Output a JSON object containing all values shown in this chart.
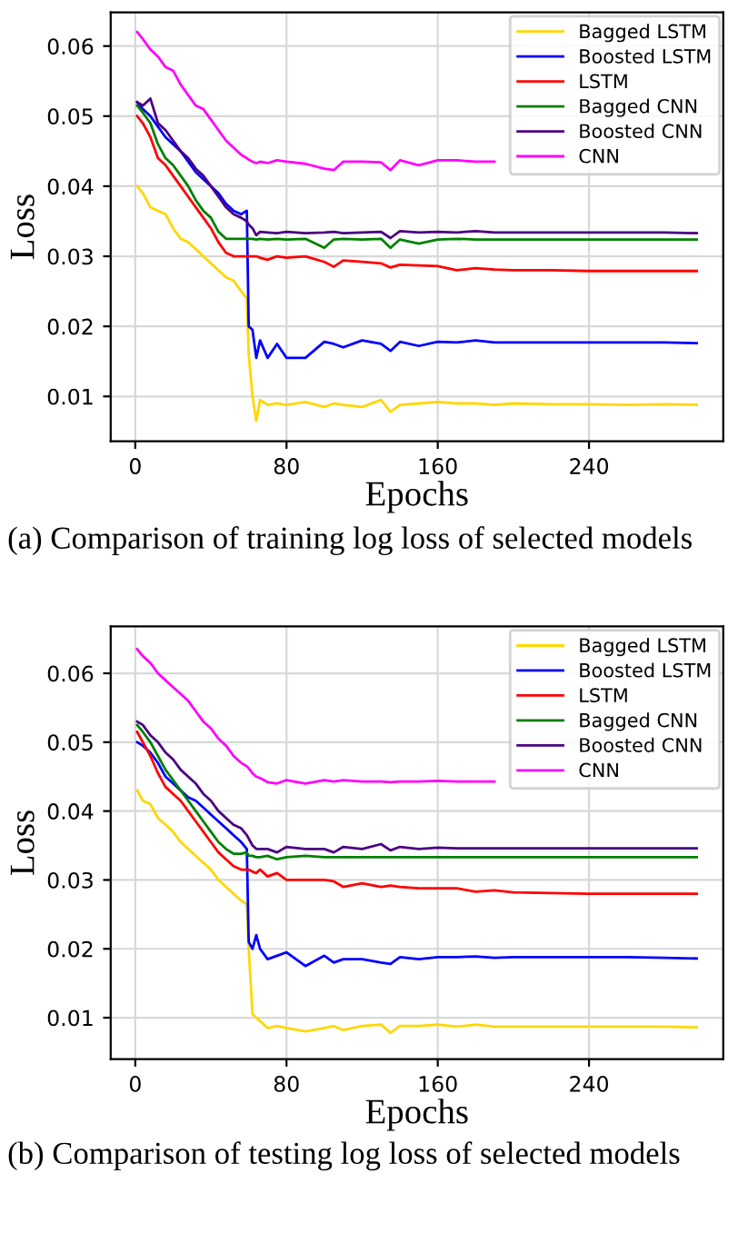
{
  "chart_data": [
    {
      "type": "line",
      "xlabel": "Epochs",
      "ylabel": "Loss",
      "xlim": [
        -13,
        311
      ],
      "ylim": [
        0.0036,
        0.0648
      ],
      "xticks": [
        0,
        80,
        160,
        240
      ],
      "yticks": [
        0.01,
        0.02,
        0.03,
        0.04,
        0.05,
        0.06
      ],
      "grid": true,
      "legend": "top right",
      "annotations": [
        "(a) Comparison of training log loss of selected models"
      ],
      "x": [
        1,
        4,
        8,
        12,
        16,
        20,
        24,
        28,
        32,
        36,
        40,
        44,
        48,
        52,
        56,
        59,
        60,
        62,
        64,
        66,
        70,
        75,
        80,
        90,
        100,
        105,
        110,
        120,
        130,
        135,
        140,
        150,
        160,
        170,
        180,
        190,
        200,
        220,
        240,
        260,
        280,
        297
      ],
      "series": [
        {
          "name": "Bagged LSTM",
          "color": "#ffd700",
          "values": [
            0.04,
            0.039,
            0.037,
            0.0365,
            0.036,
            0.034,
            0.0325,
            0.032,
            0.031,
            0.03,
            0.029,
            0.028,
            0.027,
            0.0265,
            0.025,
            0.024,
            0.016,
            0.01,
            0.0065,
            0.0095,
            0.0088,
            0.009,
            0.0088,
            0.0092,
            0.0085,
            0.009,
            0.0088,
            0.0085,
            0.0095,
            0.0078,
            0.0088,
            0.009,
            0.0092,
            0.009,
            0.009,
            0.0088,
            0.009,
            0.0089,
            0.0089,
            0.0088,
            0.0089,
            0.0088
          ]
        },
        {
          "name": "Boosted LSTM",
          "color": "#0000ff",
          "values": [
            0.052,
            0.051,
            0.05,
            0.0485,
            0.047,
            0.046,
            0.045,
            0.0435,
            0.042,
            0.041,
            0.04,
            0.039,
            0.0375,
            0.0365,
            0.036,
            0.0365,
            0.02,
            0.0195,
            0.0155,
            0.018,
            0.0155,
            0.0175,
            0.0155,
            0.0155,
            0.0178,
            0.0175,
            0.017,
            0.018,
            0.0175,
            0.0165,
            0.0178,
            0.0172,
            0.0178,
            0.0177,
            0.018,
            0.0177,
            0.0177,
            0.0177,
            0.0177,
            0.0177,
            0.0177,
            0.0176
          ]
        },
        {
          "name": "LSTM",
          "color": "#ff0000",
          "values": [
            0.05,
            0.049,
            0.047,
            0.044,
            0.043,
            0.0415,
            0.04,
            0.0385,
            0.037,
            0.0355,
            0.034,
            0.032,
            0.0305,
            0.03,
            0.03,
            0.03,
            0.03,
            0.03,
            0.03,
            0.0298,
            0.0295,
            0.03,
            0.0298,
            0.03,
            0.0292,
            0.0285,
            0.0294,
            0.0292,
            0.029,
            0.0284,
            0.0288,
            0.0287,
            0.0286,
            0.028,
            0.0283,
            0.0281,
            0.028,
            0.028,
            0.0279,
            0.0279,
            0.0279,
            0.0279
          ]
        },
        {
          "name": "Bagged CNN",
          "color": "#008000",
          "values": [
            0.0515,
            0.0505,
            0.049,
            0.046,
            0.044,
            0.043,
            0.0415,
            0.04,
            0.038,
            0.0365,
            0.0355,
            0.0335,
            0.0325,
            0.0325,
            0.0325,
            0.0325,
            0.0325,
            0.0325,
            0.0324,
            0.0325,
            0.0324,
            0.0325,
            0.0324,
            0.0325,
            0.0312,
            0.0324,
            0.0325,
            0.0324,
            0.0325,
            0.0312,
            0.0324,
            0.0318,
            0.0324,
            0.0325,
            0.0324,
            0.0324,
            0.0324,
            0.0324,
            0.0324,
            0.0324,
            0.0324,
            0.0324
          ]
        },
        {
          "name": "Boosted CNN",
          "color": "#4b0082",
          "values": [
            0.052,
            0.0515,
            0.0525,
            0.049,
            0.048,
            0.0465,
            0.045,
            0.044,
            0.0425,
            0.0415,
            0.04,
            0.0385,
            0.037,
            0.036,
            0.0355,
            0.035,
            0.0345,
            0.034,
            0.033,
            0.0335,
            0.0334,
            0.0333,
            0.0335,
            0.0333,
            0.0334,
            0.0335,
            0.0333,
            0.0334,
            0.0335,
            0.0326,
            0.0336,
            0.0334,
            0.0335,
            0.0334,
            0.0336,
            0.0334,
            0.0334,
            0.0334,
            0.0334,
            0.0334,
            0.0334,
            0.0333
          ]
        },
        {
          "name": "CNN",
          "color": "#ff00ff",
          "values": [
            0.062,
            0.061,
            0.0595,
            0.0585,
            0.057,
            0.0565,
            0.0545,
            0.053,
            0.0515,
            0.051,
            0.0495,
            0.048,
            0.0465,
            0.0455,
            0.0445,
            0.044,
            0.0438,
            0.0435,
            0.0433,
            0.0435,
            0.0433,
            0.0437,
            0.0435,
            0.0432,
            0.0425,
            0.0423,
            0.0435,
            0.0435,
            0.0434,
            0.0423,
            0.0437,
            0.043,
            0.0437,
            0.0437,
            0.0435,
            0.0435,
            null,
            null,
            null,
            null,
            null,
            null
          ]
        }
      ]
    },
    {
      "type": "line",
      "xlabel": "Epochs",
      "ylabel": "Loss",
      "xlim": [
        -13,
        311
      ],
      "ylim": [
        0.004,
        0.0668
      ],
      "xticks": [
        0,
        80,
        160,
        240
      ],
      "yticks": [
        0.01,
        0.02,
        0.03,
        0.04,
        0.05,
        0.06
      ],
      "grid": true,
      "legend": "top right",
      "annotations": [
        "(b) Comparison of testing log loss of selected models"
      ],
      "x": [
        1,
        4,
        8,
        12,
        16,
        20,
        24,
        28,
        32,
        36,
        40,
        44,
        48,
        52,
        56,
        59,
        60,
        62,
        64,
        66,
        70,
        75,
        80,
        90,
        100,
        105,
        110,
        120,
        130,
        135,
        140,
        150,
        160,
        170,
        180,
        190,
        200,
        220,
        240,
        260,
        280,
        297
      ],
      "series": [
        {
          "name": "Bagged LSTM",
          "color": "#ffd700",
          "values": [
            0.043,
            0.0415,
            0.041,
            0.039,
            0.038,
            0.037,
            0.0355,
            0.0345,
            0.0335,
            0.0325,
            0.0315,
            0.03,
            0.029,
            0.028,
            0.027,
            0.0265,
            0.02,
            0.0105,
            0.01,
            0.0095,
            0.0085,
            0.0088,
            0.0085,
            0.008,
            0.0085,
            0.0088,
            0.0082,
            0.0088,
            0.009,
            0.0078,
            0.0088,
            0.0088,
            0.009,
            0.0087,
            0.009,
            0.0087,
            0.0087,
            0.0087,
            0.0087,
            0.0087,
            0.0087,
            0.0086
          ]
        },
        {
          "name": "Boosted LSTM",
          "color": "#0000ff",
          "values": [
            0.05,
            0.0495,
            0.0485,
            0.047,
            0.045,
            0.044,
            0.043,
            0.042,
            0.0415,
            0.0405,
            0.0395,
            0.0385,
            0.0375,
            0.0365,
            0.0355,
            0.0345,
            0.021,
            0.02,
            0.022,
            0.02,
            0.0185,
            0.019,
            0.0195,
            0.0175,
            0.019,
            0.018,
            0.0185,
            0.0185,
            0.018,
            0.0178,
            0.0188,
            0.0185,
            0.0188,
            0.0188,
            0.0189,
            0.0187,
            0.0188,
            0.0188,
            0.0188,
            0.0188,
            0.0187,
            0.0186
          ]
        },
        {
          "name": "LSTM",
          "color": "#ff0000",
          "values": [
            0.0515,
            0.05,
            0.048,
            0.0455,
            0.0435,
            0.0425,
            0.0415,
            0.04,
            0.0385,
            0.037,
            0.0355,
            0.034,
            0.033,
            0.032,
            0.0315,
            0.0315,
            0.0315,
            0.0312,
            0.031,
            0.0315,
            0.0305,
            0.031,
            0.03,
            0.03,
            0.03,
            0.0298,
            0.029,
            0.0295,
            0.029,
            0.0292,
            0.029,
            0.0288,
            0.0288,
            0.0288,
            0.0283,
            0.0285,
            0.0282,
            0.0281,
            0.028,
            0.028,
            0.028,
            0.028
          ]
        },
        {
          "name": "Bagged CNN",
          "color": "#008000",
          "values": [
            0.0525,
            0.0515,
            0.05,
            0.048,
            0.046,
            0.0445,
            0.043,
            0.0415,
            0.04,
            0.0385,
            0.037,
            0.0355,
            0.0345,
            0.0338,
            0.0338,
            0.034,
            0.0335,
            0.0335,
            0.0333,
            0.0333,
            0.0335,
            0.033,
            0.0333,
            0.0335,
            0.0333,
            0.0333,
            0.0333,
            0.0333,
            0.0333,
            0.0333,
            0.0333,
            0.0333,
            0.0333,
            0.0333,
            0.0333,
            0.0333,
            0.0333,
            0.0333,
            0.0333,
            0.0333,
            0.0333,
            0.0333
          ]
        },
        {
          "name": "Boosted CNN",
          "color": "#4b0082",
          "values": [
            0.053,
            0.0525,
            0.051,
            0.05,
            0.0485,
            0.0475,
            0.046,
            0.045,
            0.044,
            0.0425,
            0.0415,
            0.04,
            0.039,
            0.038,
            0.0375,
            0.0365,
            0.036,
            0.035,
            0.0345,
            0.0345,
            0.0345,
            0.034,
            0.0348,
            0.0345,
            0.0345,
            0.034,
            0.0348,
            0.0345,
            0.0352,
            0.0343,
            0.0348,
            0.0345,
            0.0347,
            0.0346,
            0.0346,
            0.0346,
            0.0346,
            0.0346,
            0.0346,
            0.0346,
            0.0346,
            0.0346
          ]
        },
        {
          "name": "CNN",
          "color": "#ff00ff",
          "values": [
            0.0635,
            0.0625,
            0.0615,
            0.06,
            0.059,
            0.058,
            0.057,
            0.056,
            0.0545,
            0.053,
            0.052,
            0.0505,
            0.0495,
            0.048,
            0.047,
            0.0465,
            0.0462,
            0.0455,
            0.045,
            0.0448,
            0.0442,
            0.044,
            0.0445,
            0.044,
            0.0445,
            0.0443,
            0.0445,
            0.0443,
            0.0443,
            0.0442,
            0.0443,
            0.0443,
            0.0444,
            0.0443,
            0.0443,
            0.0443,
            null,
            null,
            null,
            null,
            null,
            null
          ]
        }
      ]
    }
  ]
}
